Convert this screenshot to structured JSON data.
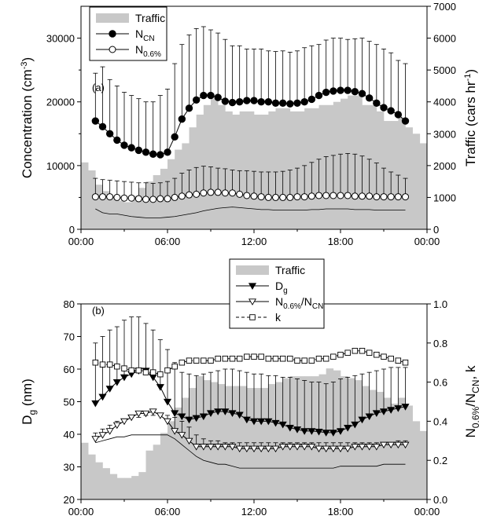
{
  "chart_data": [
    {
      "type": "line",
      "panel_label": "(a)",
      "x_ticks": [
        "00:00",
        "06:00",
        "12:00",
        "18:00",
        "00:00"
      ],
      "x_range_hours": [
        0,
        24
      ],
      "x_step_hours": 0.5,
      "ylabel": {
        "main": "Concentration (cm",
        "sup": "-3",
        "tail": ")"
      },
      "ylim": [
        0,
        35000
      ],
      "y_ticks": [
        "0",
        "10000",
        "20000",
        "30000"
      ],
      "y2label": {
        "main": "Traffic (cars hr",
        "sup": "-1",
        "tail": ")"
      },
      "y2lim": [
        0,
        7000
      ],
      "y2_ticks": [
        "0",
        "1000",
        "2000",
        "3000",
        "4000",
        "5000",
        "6000",
        "7000"
      ],
      "legend": [
        {
          "type": "bar",
          "text": "Traffic",
          "sub": ""
        },
        {
          "type": "filled-circle",
          "text": "N",
          "sub": "CN"
        },
        {
          "type": "open-circle",
          "text": "N",
          "sub": "0.6%"
        }
      ],
      "series": [
        {
          "name": "Traffic",
          "axis": "right",
          "kind": "bar",
          "color": "#c8c8c8",
          "values": [
            2100,
            1850,
            1400,
            1200,
            1000,
            900,
            850,
            1050,
            1300,
            1500,
            1700,
            1900,
            2200,
            2500,
            2700,
            3200,
            3600,
            3900,
            4100,
            3900,
            3700,
            3600,
            3700,
            3700,
            3600,
            3600,
            3700,
            3800,
            3800,
            3700,
            3700,
            3800,
            3800,
            3900,
            3900,
            4000,
            4100,
            4200,
            4200,
            3900,
            3900,
            3700,
            3400,
            3400,
            3500,
            3200,
            3000,
            2700
          ]
        },
        {
          "name": "N_CN",
          "axis": "left",
          "kind": "line",
          "marker": "filled-circle",
          "values": [
            17000,
            16100,
            15000,
            14000,
            13200,
            12800,
            12400,
            12100,
            11800,
            11700,
            12100,
            14500,
            17300,
            19000,
            20300,
            21000,
            21000,
            20700,
            20100,
            19900,
            20000,
            20200,
            20200,
            20000,
            20000,
            19800,
            19800,
            19700,
            19800,
            20000,
            20400,
            21000,
            21500,
            21700,
            21800,
            21800,
            21600,
            21300,
            20600,
            19800,
            19100,
            18600,
            18000,
            17000
          ],
          "error_upper": [
            24500,
            25500,
            23500,
            22500,
            21500,
            21000,
            20500,
            20000,
            20000,
            21000,
            22000,
            26000,
            29000,
            30500,
            31500,
            31800,
            31300,
            30800,
            29800,
            28800,
            28800,
            28300,
            28300,
            28300,
            28000,
            27900,
            28000,
            27800,
            28000,
            28500,
            28800,
            29000,
            29700,
            30000,
            30000,
            29800,
            29900,
            30000,
            29500,
            29000,
            28300,
            27700,
            26500,
            26000
          ]
        },
        {
          "name": "N_0.6%",
          "axis": "left",
          "kind": "line",
          "marker": "open-circle",
          "values": [
            5100,
            5100,
            5100,
            5000,
            4900,
            4900,
            4800,
            4700,
            4700,
            4800,
            4800,
            5000,
            5200,
            5400,
            5500,
            5700,
            5800,
            5800,
            5700,
            5700,
            5500,
            5300,
            5200,
            5100,
            5000,
            5000,
            5000,
            5000,
            5100,
            5100,
            5200,
            5300,
            5300,
            5300,
            5300,
            5300,
            5200,
            5200,
            5200,
            5100,
            5100,
            5100,
            5100,
            5100
          ],
          "error_upper": [
            8000,
            7800,
            7700,
            7600,
            7500,
            7400,
            7300,
            7300,
            7200,
            7300,
            7500,
            8000,
            8800,
            9300,
            9700,
            9900,
            9800,
            9600,
            9500,
            9300,
            9200,
            9200,
            9100,
            9000,
            9000,
            9000,
            9100,
            9300,
            9600,
            10000,
            10500,
            11000,
            11400,
            11600,
            11800,
            11900,
            11800,
            11500,
            11000,
            10400,
            9600,
            9000,
            8500,
            8000
          ],
          "error_lower": [
            3200,
            2600,
            2400,
            2400,
            2200,
            2000,
            1900,
            1800,
            1800,
            1800,
            1900,
            2000,
            2200,
            2400,
            2600,
            2900,
            3100,
            3300,
            3400,
            3500,
            3400,
            3300,
            3200,
            3100,
            3100,
            3000,
            3000,
            3000,
            3000,
            3000,
            3100,
            3100,
            3200,
            3200,
            3200,
            3200,
            3100,
            3100,
            3100,
            3000,
            3000,
            3000,
            3000,
            3000
          ]
        }
      ]
    },
    {
      "type": "line",
      "panel_label": "(b)",
      "x_ticks": [
        "00:00",
        "06:00",
        "12:00",
        "18:00",
        "00:00"
      ],
      "x_range_hours": [
        0,
        24
      ],
      "x_step_hours": 0.5,
      "ylabel": {
        "main": "D",
        "sub": "g",
        "tail": " (nm)"
      },
      "ylim": [
        20,
        80
      ],
      "y_ticks": [
        "20",
        "30",
        "40",
        "50",
        "60",
        "70",
        "80"
      ],
      "y2label": {
        "a": "N",
        "a_sub": "0.6%",
        "b": "/N",
        "b_sub": "CN",
        "c": ", k"
      },
      "y2lim": [
        0,
        1
      ],
      "y2_ticks": [
        "0.0",
        "0.2",
        "0.4",
        "0.6",
        "0.8",
        "1.0"
      ],
      "legend": [
        {
          "type": "bar",
          "text": "Traffic",
          "sub": "",
          "text2": "",
          "sub2": ""
        },
        {
          "type": "filled-triangle",
          "text": "D",
          "sub": "g",
          "text2": "",
          "sub2": ""
        },
        {
          "type": "open-triangle",
          "text": "N",
          "sub": "0.6%",
          "text2": "/N",
          "sub2": "CN"
        },
        {
          "type": "open-square-dashed",
          "text": "k",
          "sub": "",
          "text2": "",
          "sub2": ""
        }
      ],
      "series": [
        {
          "name": "Traffic",
          "axis": "right",
          "kind": "bar",
          "color": "#c8c8c8",
          "values": [
            0.29,
            0.23,
            0.19,
            0.16,
            0.13,
            0.11,
            0.11,
            0.12,
            0.14,
            0.25,
            0.28,
            0.34,
            0.4,
            0.47,
            0.52,
            0.57,
            0.63,
            0.61,
            0.6,
            0.59,
            0.58,
            0.58,
            0.58,
            0.57,
            0.57,
            0.57,
            0.59,
            0.6,
            0.62,
            0.63,
            0.63,
            0.63,
            0.63,
            0.64,
            0.67,
            0.66,
            0.63,
            0.62,
            0.61,
            0.58,
            0.56,
            0.55,
            0.52,
            0.49,
            0.52,
            0.48,
            0.4,
            0.35
          ]
        },
        {
          "name": "D_g",
          "axis": "left",
          "kind": "line",
          "marker": "filled-triangle",
          "values": [
            49.5,
            51.5,
            54,
            56,
            57.5,
            58.5,
            59.5,
            59.5,
            57.5,
            54.5,
            50,
            46.5,
            45.5,
            44.5,
            45,
            45.5,
            46.5,
            47,
            47,
            46.5,
            46,
            44.5,
            44,
            44,
            44,
            43.5,
            43,
            42,
            41.5,
            41,
            41,
            40.8,
            40.5,
            40.5,
            41,
            42,
            43,
            44.5,
            45.5,
            46.5,
            47,
            47.5,
            48,
            48.5
          ],
          "error_upper": [
            68,
            70,
            72,
            73,
            75,
            76,
            76,
            74,
            72,
            69,
            66,
            62,
            59,
            58.5,
            58,
            58.5,
            59,
            59.5,
            60,
            60,
            59.5,
            59,
            58.5,
            58.5,
            58,
            58,
            57.5,
            57.5,
            57,
            56.5,
            56,
            56,
            55.5,
            56,
            57,
            57.5,
            58,
            58.5,
            59,
            59.5,
            60,
            60.5,
            60.5,
            60.5
          ]
        },
        {
          "name": "N_0.6%/N_CN",
          "axis": "right",
          "kind": "line",
          "marker": "open-triangle",
          "values": [
            0.31,
            0.33,
            0.35,
            0.38,
            0.4,
            0.42,
            0.44,
            0.44,
            0.45,
            0.43,
            0.4,
            0.35,
            0.33,
            0.3,
            0.27,
            0.27,
            0.27,
            0.27,
            0.27,
            0.27,
            0.26,
            0.26,
            0.26,
            0.26,
            0.26,
            0.26,
            0.27,
            0.27,
            0.27,
            0.27,
            0.27,
            0.26,
            0.26,
            0.26,
            0.26,
            0.26,
            0.27,
            0.27,
            0.27,
            0.27,
            0.28,
            0.28,
            0.28,
            0.28
          ],
          "error_upper": [
            0.34,
            0.36,
            0.38,
            0.4,
            0.41,
            0.42,
            0.42,
            0.43,
            0.43,
            0.43,
            0.43,
            0.42,
            0.4,
            0.37,
            0.33,
            0.31,
            0.3,
            0.3,
            0.29,
            0.29,
            0.29,
            0.29,
            0.29,
            0.29,
            0.29,
            0.29,
            0.29,
            0.29,
            0.29,
            0.29,
            0.29,
            0.29,
            0.29,
            0.29,
            0.29,
            0.29,
            0.29,
            0.29,
            0.29,
            0.29,
            0.29,
            0.29,
            0.3,
            0.3
          ],
          "error_lower": [
            0.29,
            0.3,
            0.31,
            0.32,
            0.32,
            0.33,
            0.33,
            0.33,
            0.33,
            0.33,
            0.33,
            0.31,
            0.28,
            0.25,
            0.22,
            0.2,
            0.19,
            0.18,
            0.18,
            0.17,
            0.16,
            0.16,
            0.16,
            0.16,
            0.16,
            0.16,
            0.16,
            0.16,
            0.16,
            0.16,
            0.16,
            0.16,
            0.16,
            0.16,
            0.17,
            0.17,
            0.17,
            0.17,
            0.17,
            0.17,
            0.18,
            0.18,
            0.18,
            0.18
          ]
        },
        {
          "name": "k",
          "axis": "right",
          "kind": "line",
          "marker": "open-square",
          "dashed": true,
          "values": [
            0.7,
            0.69,
            0.69,
            0.68,
            0.67,
            0.66,
            0.66,
            0.65,
            0.65,
            0.64,
            0.66,
            0.68,
            0.7,
            0.71,
            0.71,
            0.71,
            0.71,
            0.72,
            0.72,
            0.72,
            0.72,
            0.73,
            0.73,
            0.73,
            0.72,
            0.72,
            0.72,
            0.72,
            0.71,
            0.71,
            0.71,
            0.72,
            0.72,
            0.73,
            0.74,
            0.75,
            0.76,
            0.76,
            0.75,
            0.74,
            0.73,
            0.72,
            0.71,
            0.7
          ]
        }
      ]
    }
  ]
}
